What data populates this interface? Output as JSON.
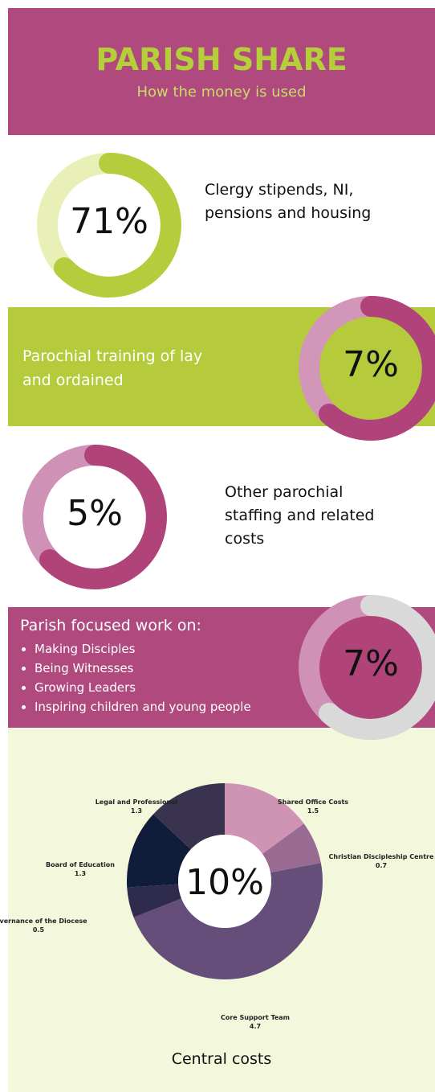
{
  "header": {
    "title": "PARISH SHARE",
    "subtitle": "How the money is used"
  },
  "items": [
    {
      "percent": "71%",
      "text": "Clergy stipends, NI, pensions and housing"
    },
    {
      "percent": "7%",
      "text": "Parochial training of lay and ordained"
    },
    {
      "percent": "5%",
      "text": "Other parochial staffing and related costs"
    },
    {
      "percent": "7%",
      "heading": "Parish focused work on:",
      "bullets": [
        "Making Disciples",
        "Being Witnesses",
        "Growing Leaders",
        "Inspiring children and young people"
      ]
    }
  ],
  "chart_data": {
    "type": "pie",
    "center_label": "10%",
    "caption": "Central costs",
    "categories": [
      "Shared Office Costs",
      "Christian Discipleship Centre",
      "Core Support Team",
      "Governance of the Diocese",
      "Board of Education",
      "Legal and Professional"
    ],
    "values": [
      1.5,
      0.7,
      4.7,
      0.5,
      1.3,
      1.3
    ],
    "colors": [
      "#cf93b3",
      "#9a6b92",
      "#654f7a",
      "#2f2b4d",
      "#0f1d3a",
      "#39334f"
    ]
  }
}
